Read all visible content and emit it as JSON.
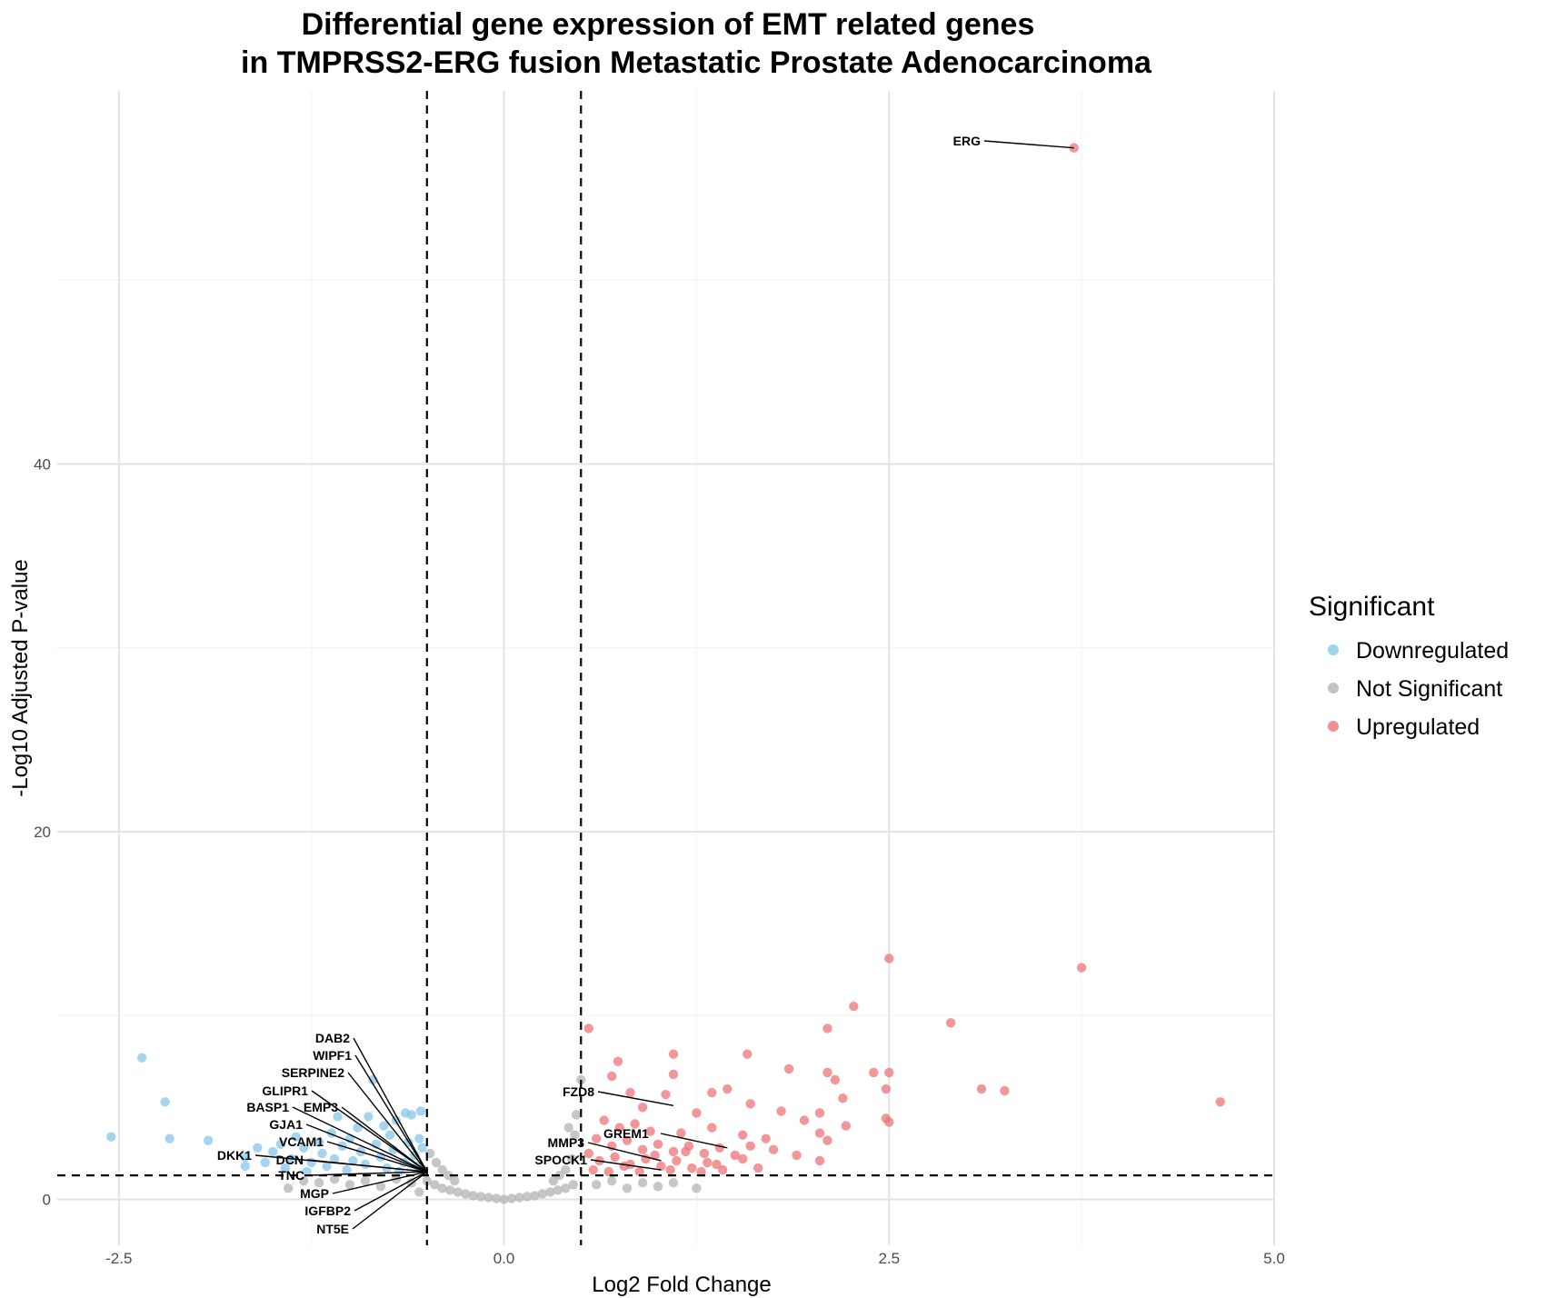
{
  "chart_data": {
    "type": "scatter",
    "title_lines": [
      "Differential gene expression of EMT related genes",
      "in TMPRSS2-ERG fusion Metastatic Prostate Adenocarcinoma"
    ],
    "xlabel": "Log2 Fold Change",
    "ylabel": "-Log10 Adjusted P-value",
    "xlim": [
      -2.9,
      5.0
    ],
    "ylim": [
      -2.5,
      60.3
    ],
    "x_ticks": [
      -2.5,
      0.0,
      2.5,
      5.0
    ],
    "x_tick_labels": [
      "-2.5",
      "0.0",
      "2.5",
      "5.0"
    ],
    "y_ticks": [
      0,
      20,
      40
    ],
    "y_tick_labels": [
      "0",
      "20",
      "40"
    ],
    "grid": true,
    "thresholds": {
      "log2fc": [
        -0.5,
        0.5
      ],
      "neg_log10_padj": 1.3
    },
    "legend": {
      "title": "Significant",
      "position": "right",
      "entries": [
        {
          "label": "Downregulated",
          "color": "#87C7E8"
        },
        {
          "label": "Not Significant",
          "color": "#B3B3B3"
        },
        {
          "label": "Upregulated",
          "color": "#EC7478"
        }
      ]
    },
    "series": [
      {
        "name": "Downregulated",
        "color": "#87C7E8",
        "points": [
          [
            -2.35,
            7.7
          ],
          [
            -2.2,
            5.3
          ],
          [
            -2.55,
            3.4
          ],
          [
            -2.17,
            3.3
          ],
          [
            -1.92,
            3.2
          ],
          [
            -1.68,
            2.3
          ],
          [
            -1.68,
            1.8
          ],
          [
            -1.6,
            2.8
          ],
          [
            -1.55,
            2.0
          ],
          [
            -1.5,
            2.6
          ],
          [
            -1.45,
            3.0
          ],
          [
            -1.42,
            1.7
          ],
          [
            -1.38,
            2.2
          ],
          [
            -1.35,
            3.4
          ],
          [
            -1.3,
            2.8
          ],
          [
            -1.28,
            1.5
          ],
          [
            -1.25,
            2.0
          ],
          [
            -1.2,
            3.1
          ],
          [
            -1.18,
            2.5
          ],
          [
            -1.15,
            1.8
          ],
          [
            -1.12,
            3.6
          ],
          [
            -1.1,
            2.2
          ],
          [
            -1.08,
            4.5
          ],
          [
            -1.05,
            2.9
          ],
          [
            -1.02,
            1.6
          ],
          [
            -1.0,
            3.3
          ],
          [
            -0.98,
            2.1
          ],
          [
            -0.95,
            3.9
          ],
          [
            -0.93,
            2.6
          ],
          [
            -0.9,
            1.9
          ],
          [
            -0.88,
            4.5
          ],
          [
            -0.85,
            6.5
          ],
          [
            -0.83,
            3.0
          ],
          [
            -0.8,
            2.3
          ],
          [
            -0.78,
            4.0
          ],
          [
            -0.76,
            1.7
          ],
          [
            -0.74,
            3.5
          ],
          [
            -0.72,
            2.7
          ],
          [
            -0.7,
            4.3
          ],
          [
            -0.68,
            1.5
          ],
          [
            -0.65,
            2.0
          ],
          [
            -0.64,
            4.7
          ],
          [
            -0.62,
            3.1
          ],
          [
            -0.6,
            4.6
          ],
          [
            -0.58,
            2.4
          ],
          [
            -0.56,
            1.8
          ],
          [
            -0.55,
            3.3
          ],
          [
            -0.54,
            4.8
          ],
          [
            -0.53,
            2.8
          ],
          [
            -0.52,
            1.6
          ]
        ]
      },
      {
        "name": "Not Significant",
        "color": "#B3B3B3",
        "points": [
          [
            -0.5,
            1.0
          ],
          [
            -0.45,
            0.8
          ],
          [
            -0.4,
            0.6
          ],
          [
            -0.35,
            0.5
          ],
          [
            -0.3,
            0.4
          ],
          [
            -0.25,
            0.3
          ],
          [
            -0.2,
            0.2
          ],
          [
            -0.15,
            0.15
          ],
          [
            -0.1,
            0.1
          ],
          [
            -0.05,
            0.05
          ],
          [
            0.0,
            0.0
          ],
          [
            0.05,
            0.05
          ],
          [
            0.1,
            0.1
          ],
          [
            0.15,
            0.15
          ],
          [
            0.2,
            0.2
          ],
          [
            0.25,
            0.3
          ],
          [
            0.3,
            0.4
          ],
          [
            0.35,
            0.5
          ],
          [
            0.4,
            0.6
          ],
          [
            0.45,
            0.8
          ],
          [
            -0.48,
            2.5
          ],
          [
            -0.44,
            2.0
          ],
          [
            -0.4,
            1.6
          ],
          [
            -0.36,
            1.3
          ],
          [
            -0.32,
            1.0
          ],
          [
            0.32,
            1.0
          ],
          [
            0.36,
            1.3
          ],
          [
            0.4,
            1.6
          ],
          [
            0.44,
            2.2
          ],
          [
            0.46,
            3.5
          ],
          [
            0.47,
            4.6
          ],
          [
            0.42,
            3.9
          ],
          [
            0.5,
            6.5
          ],
          [
            0.6,
            0.8
          ],
          [
            0.7,
            1.0
          ],
          [
            0.8,
            0.6
          ],
          [
            0.9,
            0.9
          ],
          [
            1.0,
            0.7
          ],
          [
            1.1,
            0.9
          ],
          [
            1.25,
            0.6
          ],
          [
            -0.6,
            0.9
          ],
          [
            -0.7,
            1.1
          ],
          [
            -0.8,
            0.7
          ],
          [
            -0.9,
            1.0
          ],
          [
            -1.0,
            0.8
          ],
          [
            -1.1,
            1.1
          ],
          [
            -1.2,
            0.9
          ],
          [
            -1.3,
            1.0
          ],
          [
            -1.4,
            0.6
          ],
          [
            -0.55,
            0.4
          ]
        ]
      },
      {
        "name": "Upregulated",
        "color": "#EC7478",
        "points": [
          [
            3.7,
            57.2
          ],
          [
            2.5,
            13.1
          ],
          [
            3.75,
            12.6
          ],
          [
            2.27,
            10.5
          ],
          [
            2.9,
            9.6
          ],
          [
            2.1,
            9.3
          ],
          [
            0.55,
            9.3
          ],
          [
            1.1,
            7.9
          ],
          [
            1.58,
            7.9
          ],
          [
            0.74,
            7.5
          ],
          [
            1.85,
            7.1
          ],
          [
            1.1,
            6.8
          ],
          [
            2.1,
            6.9
          ],
          [
            2.4,
            6.9
          ],
          [
            2.5,
            6.9
          ],
          [
            0.7,
            6.7
          ],
          [
            2.15,
            6.5
          ],
          [
            3.1,
            6.0
          ],
          [
            3.25,
            5.9
          ],
          [
            2.48,
            6.0
          ],
          [
            1.45,
            6.0
          ],
          [
            1.35,
            5.8
          ],
          [
            1.05,
            5.7
          ],
          [
            0.82,
            5.8
          ],
          [
            4.65,
            5.3
          ],
          [
            2.2,
            5.5
          ],
          [
            1.6,
            5.2
          ],
          [
            1.8,
            4.8
          ],
          [
            2.05,
            4.7
          ],
          [
            0.9,
            5.0
          ],
          [
            1.25,
            4.7
          ],
          [
            2.48,
            4.4
          ],
          [
            2.5,
            4.2
          ],
          [
            1.95,
            4.3
          ],
          [
            2.22,
            4.0
          ],
          [
            0.65,
            4.3
          ],
          [
            0.75,
            3.9
          ],
          [
            0.85,
            4.1
          ],
          [
            0.95,
            3.7
          ],
          [
            1.15,
            3.6
          ],
          [
            1.35,
            3.9
          ],
          [
            1.55,
            3.5
          ],
          [
            1.7,
            3.3
          ],
          [
            2.05,
            3.6
          ],
          [
            0.6,
            3.3
          ],
          [
            0.7,
            2.9
          ],
          [
            0.8,
            3.2
          ],
          [
            0.9,
            2.7
          ],
          [
            1.0,
            3.0
          ],
          [
            1.1,
            2.6
          ],
          [
            1.2,
            2.9
          ],
          [
            1.3,
            2.5
          ],
          [
            1.4,
            2.8
          ],
          [
            1.5,
            2.4
          ],
          [
            1.6,
            2.9
          ],
          [
            1.75,
            2.7
          ],
          [
            1.9,
            2.4
          ],
          [
            2.05,
            2.1
          ],
          [
            2.1,
            3.2
          ],
          [
            0.55,
            2.5
          ],
          [
            0.62,
            2.1
          ],
          [
            0.72,
            2.3
          ],
          [
            0.82,
            1.9
          ],
          [
            0.92,
            2.2
          ],
          [
            1.02,
            1.8
          ],
          [
            1.12,
            2.1
          ],
          [
            1.22,
            1.7
          ],
          [
            1.32,
            2.0
          ],
          [
            1.42,
            1.6
          ],
          [
            1.55,
            2.2
          ],
          [
            1.65,
            1.7
          ],
          [
            0.58,
            1.6
          ],
          [
            0.68,
            1.5
          ],
          [
            0.78,
            1.8
          ],
          [
            0.88,
            1.5
          ],
          [
            0.98,
            2.4
          ],
          [
            1.08,
            1.6
          ],
          [
            1.18,
            2.6
          ],
          [
            1.28,
            1.5
          ],
          [
            1.38,
            1.9
          ]
        ]
      }
    ],
    "labels": [
      {
        "text": "ERG",
        "x": 3.7,
        "y": 57.2
      },
      {
        "text": "DAB2",
        "x": -0.5,
        "y": 1.5
      },
      {
        "text": "WIPF1",
        "x": -0.5,
        "y": 1.5
      },
      {
        "text": "SERPINE2",
        "x": -0.5,
        "y": 1.5
      },
      {
        "text": "GLIPR1",
        "x": -0.5,
        "y": 1.5
      },
      {
        "text": "BASP1",
        "x": -0.5,
        "y": 1.5
      },
      {
        "text": "EMP3",
        "x": -0.5,
        "y": 1.5
      },
      {
        "text": "GJA1",
        "x": -0.5,
        "y": 1.5
      },
      {
        "text": "VCAM1",
        "x": -0.5,
        "y": 1.5
      },
      {
        "text": "DKK1",
        "x": -0.5,
        "y": 1.5
      },
      {
        "text": "DCN",
        "x": -0.5,
        "y": 1.5
      },
      {
        "text": "TNC",
        "x": -0.5,
        "y": 1.5
      },
      {
        "text": "MGP",
        "x": -0.5,
        "y": 1.5
      },
      {
        "text": "IGFBP2",
        "x": -0.5,
        "y": 1.5
      },
      {
        "text": "NT5E",
        "x": -0.5,
        "y": 1.5
      },
      {
        "text": "FZD8",
        "x": 1.1,
        "y": 5.1
      },
      {
        "text": "GREM1",
        "x": 1.45,
        "y": 2.8
      },
      {
        "text": "MMP3",
        "x": 1.02,
        "y": 2.1
      },
      {
        "text": "SPOCK1",
        "x": 1.02,
        "y": 1.6
      }
    ]
  }
}
